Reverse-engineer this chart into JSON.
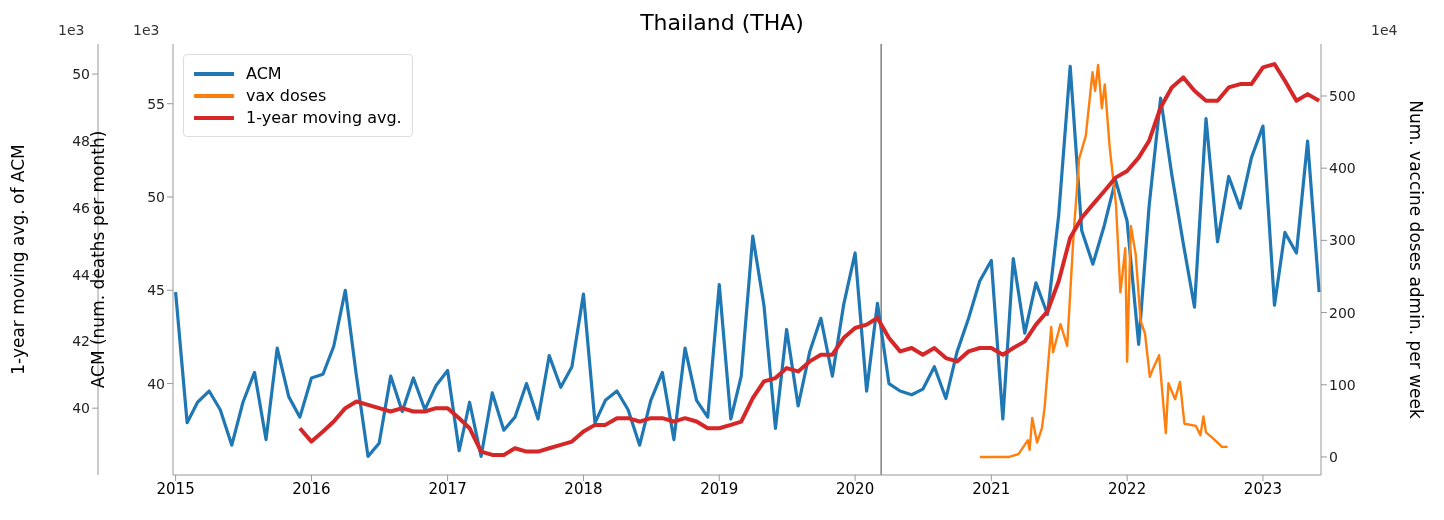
{
  "chart_data": {
    "type": "line",
    "title": "Thailand (THA)",
    "ylabel": "ACM (num. deaths per month)",
    "y2label": "Num. vaccine doses admin. per week",
    "y3label": "1-year moving avg. of ACM",
    "annotations": [
      "1e3",
      "1e3",
      "1e4"
    ],
    "legend": "top left",
    "x": [
      "2015-01",
      "2015-02",
      "2015-03",
      "2015-04",
      "2015-05",
      "2015-06",
      "2015-07",
      "2015-08",
      "2015-09",
      "2015-10",
      "2015-11",
      "2015-12",
      "2016-01",
      "2016-02",
      "2016-03",
      "2016-04",
      "2016-05",
      "2016-06",
      "2016-07",
      "2016-08",
      "2016-09",
      "2016-10",
      "2016-11",
      "2016-12",
      "2017-01",
      "2017-02",
      "2017-03",
      "2017-04",
      "2017-05",
      "2017-06",
      "2017-07",
      "2017-08",
      "2017-09",
      "2017-10",
      "2017-11",
      "2017-12",
      "2018-01",
      "2018-02",
      "2018-03",
      "2018-04",
      "2018-05",
      "2018-06",
      "2018-07",
      "2018-08",
      "2018-09",
      "2018-10",
      "2018-11",
      "2018-12",
      "2019-01",
      "2019-02",
      "2019-03",
      "2019-04",
      "2019-05",
      "2019-06",
      "2019-07",
      "2019-08",
      "2019-09",
      "2019-10",
      "2019-11",
      "2019-12",
      "2020-01",
      "2020-02",
      "2020-03",
      "2020-04",
      "2020-05",
      "2020-06",
      "2020-07",
      "2020-08",
      "2020-09",
      "2020-10",
      "2020-11",
      "2020-12",
      "2021-01",
      "2021-02",
      "2021-03",
      "2021-04",
      "2021-05",
      "2021-06",
      "2021-07",
      "2021-08",
      "2021-09",
      "2021-10",
      "2021-11",
      "2021-12",
      "2022-01",
      "2022-02",
      "2022-03",
      "2022-04",
      "2022-05",
      "2022-06",
      "2022-07",
      "2022-08",
      "2022-09",
      "2022-10",
      "2022-11",
      "2022-12",
      "2023-01",
      "2023-02",
      "2023-03",
      "2023-04",
      "2023-05",
      "2023-06"
    ],
    "series": [
      {
        "name": "ACM",
        "color": "#1f77b4",
        "values": [
          44.9,
          37.9,
          39.0,
          39.6,
          38.6,
          36.7,
          39.0,
          40.6,
          37.0,
          41.9,
          39.3,
          38.2,
          40.3,
          40.5,
          42.0,
          45.0,
          40.4,
          36.1,
          36.8,
          40.4,
          38.5,
          40.3,
          38.6,
          39.9,
          40.7,
          36.4,
          39.0,
          36.1,
          39.5,
          37.5,
          38.2,
          40.0,
          38.1,
          41.5,
          39.8,
          40.9,
          44.8,
          37.9,
          39.1,
          39.6,
          38.6,
          36.7,
          39.1,
          40.6,
          37.0,
          41.9,
          39.1,
          38.2,
          45.3,
          38.1,
          40.4,
          47.9,
          44.2,
          37.6,
          42.9,
          38.8,
          41.7,
          43.5,
          40.4,
          44.2,
          47.0,
          39.6,
          44.3,
          40.0,
          39.6,
          39.4,
          39.7,
          40.9,
          39.2,
          41.7,
          43.5,
          45.5,
          46.6,
          38.1,
          46.7,
          42.7,
          45.4,
          43.7,
          49.0,
          57.0,
          48.2,
          46.4,
          48.5,
          50.9,
          48.7,
          42.1,
          49.5,
          55.3,
          51.2,
          47.5,
          44.1,
          54.2,
          47.6,
          51.1,
          49.4,
          52.1,
          53.8,
          44.2,
          48.1,
          47.0,
          53.0,
          44.9
        ]
      },
      {
        "name": "vax doses",
        "color": "#ff7f0e",
        "axis": "y2",
        "x": [
          "2020-12-01",
          "2021-02-18",
          "2021-03-15",
          "2021-04-09",
          "2021-04-14",
          "2021-04-21",
          "2021-05-04",
          "2021-05-17",
          "2021-05-24",
          "2021-06-11",
          "2021-06-16",
          "2021-07-06",
          "2021-07-24",
          "2021-08-10",
          "2021-08-25",
          "2021-09-12",
          "2021-09-30",
          "2021-10-07",
          "2021-10-15",
          "2021-10-25",
          "2021-11-02",
          "2021-11-15",
          "2021-12-02",
          "2021-12-14",
          "2021-12-27",
          "2022-01-01",
          "2022-01-11",
          "2022-01-24",
          "2022-02-06",
          "2022-02-18",
          "2022-03-03",
          "2022-03-13",
          "2022-03-28",
          "2022-04-15",
          "2022-04-22",
          "2022-05-10",
          "2022-05-23",
          "2022-06-04",
          "2022-07-05",
          "2022-07-17",
          "2022-07-25",
          "2022-08-01",
          "2022-08-19",
          "2022-09-13",
          "2022-09-28"
        ],
        "values": [
          0,
          0,
          4,
          23,
          10,
          54,
          20,
          40,
          67,
          180,
          145,
          184,
          154,
          307,
          413,
          445,
          533,
          507,
          543,
          483,
          516,
          430,
          350,
          228,
          289,
          132,
          320,
          281,
          189,
          171,
          111,
          124,
          141,
          33,
          102,
          80,
          104,
          46,
          43,
          30,
          56,
          34,
          26,
          14,
          14
        ]
      },
      {
        "name": "1-year moving avg.",
        "color": "#d62728",
        "axis": "y3",
        "values": [
          null,
          null,
          null,
          null,
          null,
          null,
          null,
          null,
          null,
          null,
          null,
          39.4,
          39.0,
          39.3,
          39.6,
          40.0,
          40.2,
          40.1,
          40.0,
          39.9,
          40.0,
          39.9,
          39.9,
          40.0,
          40.0,
          39.7,
          39.4,
          38.7,
          38.6,
          38.6,
          38.8,
          38.7,
          38.7,
          38.8,
          38.9,
          39.0,
          39.3,
          39.5,
          39.5,
          39.7,
          39.7,
          39.6,
          39.7,
          39.7,
          39.6,
          39.7,
          39.6,
          39.4,
          39.4,
          39.5,
          39.6,
          40.3,
          40.8,
          40.9,
          41.2,
          41.1,
          41.4,
          41.6,
          41.6,
          42.1,
          42.4,
          42.5,
          42.7,
          42.1,
          41.7,
          41.8,
          41.6,
          41.8,
          41.5,
          41.4,
          41.7,
          41.8,
          41.8,
          41.6,
          41.8,
          42.0,
          42.5,
          42.9,
          43.8,
          45.1,
          45.7,
          46.1,
          46.5,
          46.9,
          47.1,
          47.5,
          48.0,
          49.0,
          49.6,
          49.9,
          49.5,
          49.2,
          49.2,
          49.6,
          49.7,
          49.7,
          50.2,
          50.3,
          49.8,
          49.2,
          49.4,
          49.2
        ]
      }
    ],
    "xlim": [
      "2014-12-25",
      "2023-06-06"
    ],
    "xticks": [
      "2015",
      "2016",
      "2017",
      "2018",
      "2019",
      "2020",
      "2021",
      "2022",
      "2023"
    ],
    "ylim": [
      35.1,
      58.2
    ],
    "yticks": [
      40,
      45,
      50,
      55
    ],
    "y2lim": [
      -25,
      572
    ],
    "y2ticks": [
      0,
      100,
      200,
      300,
      400,
      500
    ],
    "y3lim": [
      38.0,
      50.9
    ],
    "y3ticks": [
      40,
      42,
      44,
      46,
      48,
      50
    ],
    "ref_lines": [
      {
        "axis": "x",
        "value": "2020-03-11",
        "color": "#808080"
      }
    ]
  }
}
